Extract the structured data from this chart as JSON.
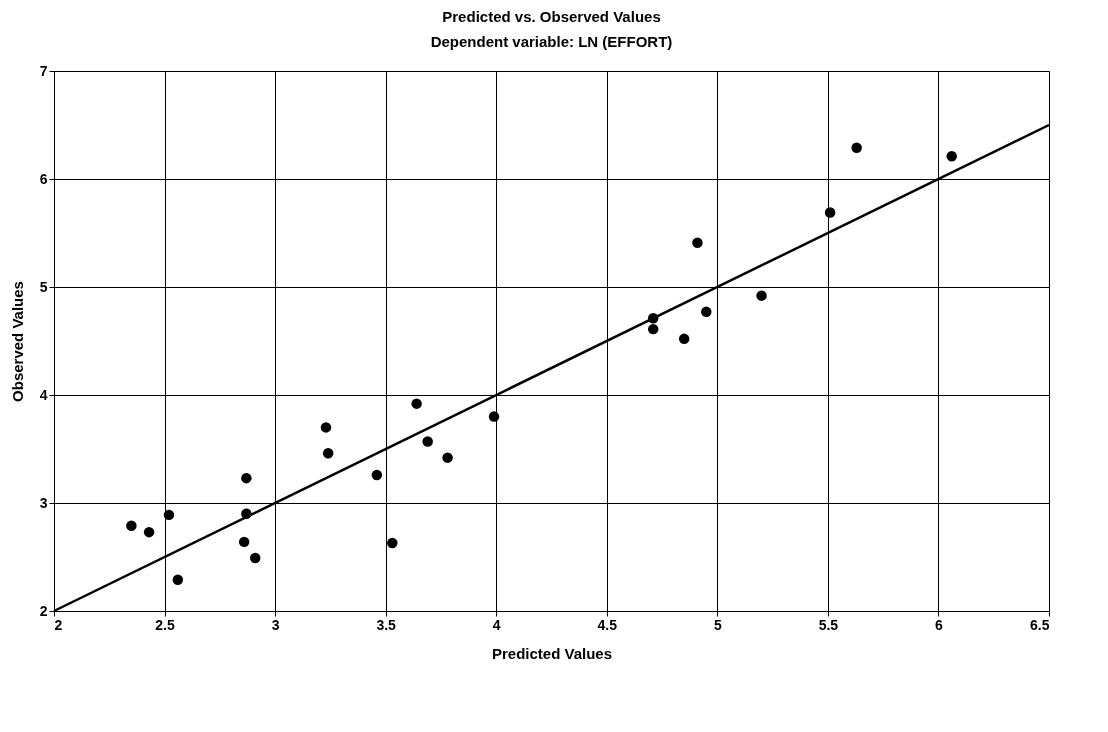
{
  "chart_data": {
    "type": "scatter",
    "title": "Predicted vs. Observed Values",
    "subtitle": "Dependent variable: LN (EFFORT)",
    "xlabel": "Predicted Values",
    "ylabel": "Observed Values",
    "xlim": [
      2,
      6.5
    ],
    "ylim": [
      2,
      7
    ],
    "xticks": [
      2,
      2.5,
      3,
      3.5,
      4,
      4.5,
      5,
      5.5,
      6,
      6.5
    ],
    "yticks": [
      2,
      3,
      4,
      5,
      6,
      7
    ],
    "grid": true,
    "marker": "circle",
    "series": [
      {
        "color": "#000000",
        "x": [
          2.35,
          2.43,
          2.52,
          2.56,
          2.87,
          2.87,
          2.86,
          2.91,
          3.23,
          3.24,
          3.46,
          3.53,
          3.64,
          3.69,
          3.78,
          3.99,
          4.71,
          4.71,
          4.85,
          4.95,
          4.91,
          5.2,
          5.51,
          5.63,
          6.06
        ],
        "values": [
          2.79,
          2.73,
          2.89,
          2.29,
          3.23,
          2.9,
          2.64,
          2.49,
          3.7,
          3.46,
          3.26,
          2.63,
          3.92,
          3.57,
          3.42,
          3.8,
          4.71,
          4.61,
          4.52,
          4.77,
          5.41,
          4.92,
          5.69,
          6.29,
          6.21
        ]
      },
      {
        "type": "line",
        "color": "#000000",
        "line_style": "solid",
        "marker": "none",
        "x": [
          2,
          6.5
        ],
        "values": [
          2,
          6.5
        ]
      }
    ]
  }
}
